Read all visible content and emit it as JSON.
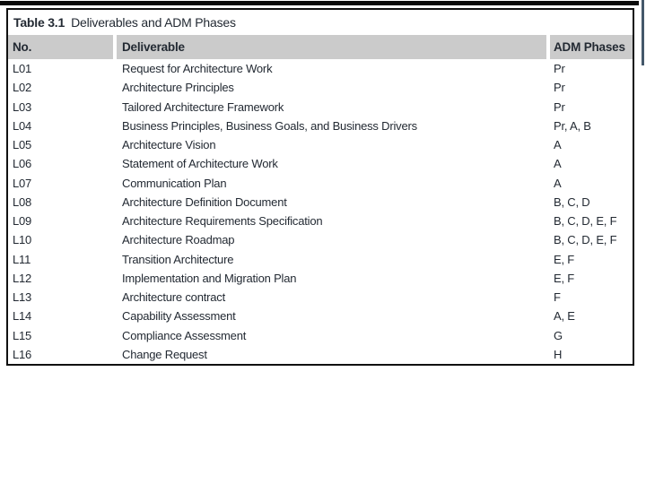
{
  "page": {
    "background_color": "#ffffff"
  },
  "decor": {
    "top_bar_color": "#0a0a0a",
    "right_line_color": "#44586a"
  },
  "table": {
    "caption_label": "Table 3.1",
    "caption_title": "Deliverables and ADM Phases",
    "header_bg_color": "#cbcbcb",
    "border_color": "#101010",
    "text_color": "#232a33",
    "headers": [
      "No.",
      "Deliverable",
      "ADM Phases"
    ],
    "rows": [
      {
        "no": "L01",
        "deliverable": "Request for Architecture Work",
        "phases": "Pr"
      },
      {
        "no": "L02",
        "deliverable": "Architecture Principles",
        "phases": "Pr"
      },
      {
        "no": "L03",
        "deliverable": "Tailored Architecture Framework",
        "phases": "Pr"
      },
      {
        "no": "L04",
        "deliverable": "Business Principles, Business Goals, and Business Drivers",
        "phases": "Pr, A, B"
      },
      {
        "no": "L05",
        "deliverable": "Architecture Vision",
        "phases": "A"
      },
      {
        "no": "L06",
        "deliverable": "Statement of Architecture Work",
        "phases": "A"
      },
      {
        "no": "L07",
        "deliverable": "Communication Plan",
        "phases": "A"
      },
      {
        "no": "L08",
        "deliverable": "Architecture Definition Document",
        "phases": "B, C, D"
      },
      {
        "no": "L09",
        "deliverable": "Architecture Requirements Specification",
        "phases": "B, C, D, E, F"
      },
      {
        "no": "L10",
        "deliverable": "Architecture Roadmap",
        "phases": "B, C, D, E, F"
      },
      {
        "no": "L11",
        "deliverable": "Transition Architecture",
        "phases": "E, F"
      },
      {
        "no": "L12",
        "deliverable": "Implementation and Migration Plan",
        "phases": "E, F"
      },
      {
        "no": "L13",
        "deliverable": "Architecture contract",
        "phases": "F"
      },
      {
        "no": "L14",
        "deliverable": "Capability Assessment",
        "phases": "A, E"
      },
      {
        "no": "L15",
        "deliverable": "Compliance Assessment",
        "phases": "G"
      },
      {
        "no": "L16",
        "deliverable": "Change Request",
        "phases": "H"
      }
    ]
  }
}
